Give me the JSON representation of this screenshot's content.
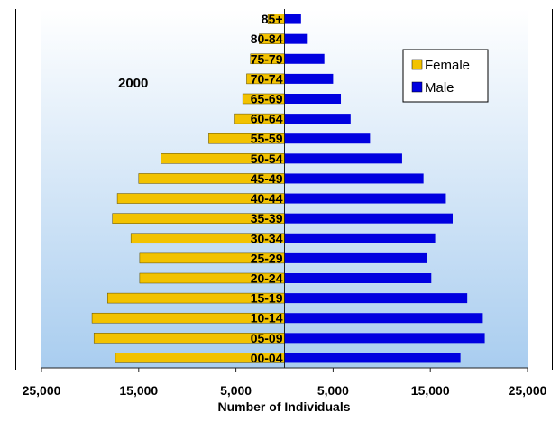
{
  "chart_data": {
    "type": "bar",
    "orientation": "horizontal-population-pyramid",
    "annotation": "2000",
    "xlabel": "Number of Individuals",
    "xlim": [
      -25000,
      25000
    ],
    "x_ticks": [
      -25000,
      -15000,
      -5000,
      5000,
      15000,
      25000
    ],
    "x_tick_labels": [
      "25,000",
      "15,000",
      "5,000",
      "5,000",
      "15,000",
      "25,000"
    ],
    "legend_position": "top-right",
    "grid": false,
    "categories": [
      "85+",
      "80-84",
      "75-79",
      "70-74",
      "65-69",
      "60-64",
      "55-59",
      "50-54",
      "45-49",
      "40-44",
      "35-39",
      "30-34",
      "25-29",
      "20-24",
      "15-19",
      "10-14",
      "05-09",
      "00-04"
    ],
    "series": [
      {
        "name": "Female",
        "color": "#F2C200",
        "values": [
          1700,
          2600,
          3500,
          3900,
          4300,
          5100,
          7800,
          12700,
          15000,
          17200,
          17700,
          15800,
          14900,
          14900,
          18200,
          19800,
          19600,
          17400
        ]
      },
      {
        "name": "Male",
        "color": "#0000E0",
        "values": [
          1700,
          2300,
          4100,
          5000,
          5800,
          6800,
          8800,
          12100,
          14300,
          16600,
          17300,
          15500,
          14700,
          15100,
          18800,
          20400,
          20600,
          18100
        ]
      }
    ]
  }
}
